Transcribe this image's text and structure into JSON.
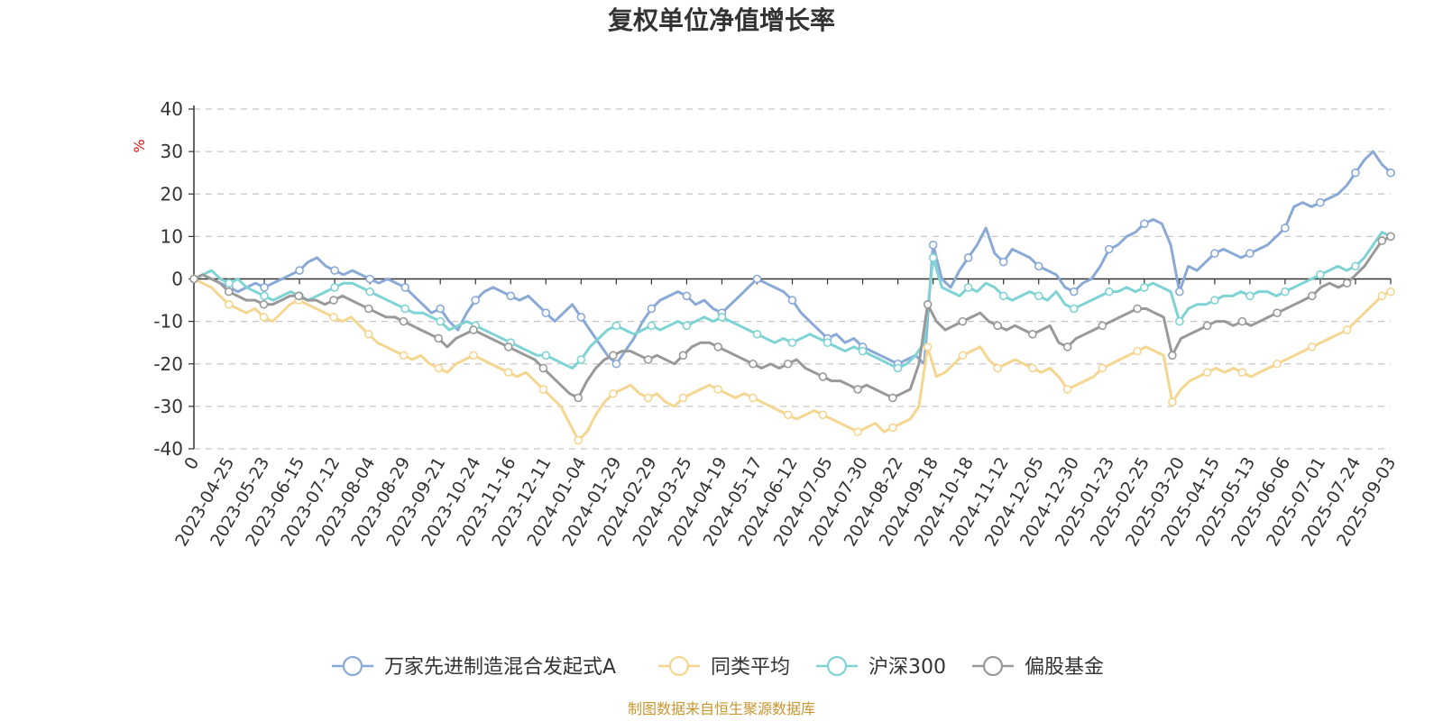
{
  "chart_data": {
    "type": "line",
    "title": "复权单位净值增长率",
    "y_unit": "%",
    "ylim": [
      -40,
      40
    ],
    "y_ticks": [
      40,
      30,
      20,
      10,
      0,
      -10,
      -20,
      -30,
      -40
    ],
    "grid": "horizontal-dashed",
    "legend_position": "bottom-center",
    "x_origin_label": "0",
    "x_tick_labels": [
      "2023-04-25",
      "2023-05-23",
      "2023-06-15",
      "2023-07-12",
      "2023-08-04",
      "2023-08-29",
      "2023-09-21",
      "2023-10-24",
      "2023-11-16",
      "2023-12-11",
      "2024-01-04",
      "2024-01-29",
      "2024-02-29",
      "2024-03-25",
      "2024-04-19",
      "2024-05-17",
      "2024-06-12",
      "2024-07-05",
      "2024-07-30",
      "2024-08-22",
      "2024-09-18",
      "2024-10-18",
      "2024-11-12",
      "2024-12-05",
      "2024-12-30",
      "2025-01-23",
      "2025-02-25",
      "2025-03-20",
      "2025-04-15",
      "2025-05-13",
      "2025-06-06",
      "2025-07-01",
      "2025-07-24",
      "2025-09-03"
    ],
    "series": [
      {
        "name": "万家先进制造混合发起式A",
        "color": "#8aa9d6",
        "values": [
          0,
          1,
          0,
          -1,
          -2,
          -3,
          -2,
          -1,
          -2,
          -1,
          0,
          1,
          2,
          4,
          5,
          3,
          2,
          1,
          2,
          1,
          0,
          -1,
          0,
          -1,
          -2,
          -4,
          -6,
          -8,
          -7,
          -10,
          -12,
          -8,
          -5,
          -3,
          -2,
          -3,
          -4,
          -5,
          -4,
          -6,
          -8,
          -10,
          -8,
          -6,
          -9,
          -12,
          -15,
          -18,
          -20,
          -17,
          -14,
          -10,
          -7,
          -5,
          -4,
          -3,
          -4,
          -6,
          -5,
          -7,
          -8,
          -6,
          -4,
          -2,
          0,
          -1,
          -2,
          -3,
          -5,
          -8,
          -10,
          -12,
          -14,
          -13,
          -15,
          -14,
          -16,
          -17,
          -18,
          -19,
          -20,
          -19,
          -18,
          -20,
          8,
          0,
          -2,
          2,
          5,
          8,
          12,
          6,
          4,
          7,
          6,
          5,
          3,
          2,
          1,
          -2,
          -3,
          -1,
          0,
          3,
          7,
          8,
          10,
          11,
          13,
          14,
          13,
          8,
          -3,
          3,
          2,
          4,
          6,
          7,
          6,
          5,
          6,
          7,
          8,
          10,
          12,
          17,
          18,
          17,
          18,
          19,
          20,
          22,
          25,
          28,
          30,
          27,
          25
        ]
      },
      {
        "name": "同类平均",
        "color": "#f5d691",
        "values": [
          0,
          -1,
          -2,
          -4,
          -6,
          -7,
          -8,
          -7,
          -9,
          -10,
          -8,
          -6,
          -5,
          -6,
          -7,
          -8,
          -9,
          -10,
          -9,
          -11,
          -13,
          -15,
          -16,
          -17,
          -18,
          -19,
          -18,
          -20,
          -21,
          -22,
          -20,
          -19,
          -18,
          -19,
          -20,
          -21,
          -22,
          -23,
          -22,
          -24,
          -26,
          -28,
          -30,
          -34,
          -38,
          -36,
          -32,
          -29,
          -27,
          -26,
          -25,
          -27,
          -28,
          -27,
          -29,
          -30,
          -28,
          -27,
          -26,
          -25,
          -26,
          -27,
          -28,
          -27,
          -28,
          -29,
          -30,
          -31,
          -32,
          -33,
          -32,
          -31,
          -32,
          -33,
          -34,
          -35,
          -36,
          -35,
          -34,
          -36,
          -35,
          -34,
          -33,
          -30,
          -16,
          -23,
          -22,
          -20,
          -18,
          -17,
          -16,
          -19,
          -21,
          -20,
          -19,
          -20,
          -21,
          -22,
          -21,
          -23,
          -26,
          -25,
          -24,
          -23,
          -21,
          -20,
          -19,
          -18,
          -17,
          -16,
          -17,
          -18,
          -29,
          -26,
          -24,
          -23,
          -22,
          -21,
          -22,
          -21,
          -22,
          -23,
          -22,
          -21,
          -20,
          -19,
          -18,
          -17,
          -16,
          -15,
          -14,
          -13,
          -12,
          -10,
          -8,
          -6,
          -4,
          -3
        ]
      },
      {
        "name": "沪深300",
        "color": "#7fd3d3",
        "values": [
          0,
          1,
          2,
          0,
          -1,
          0,
          -2,
          -3,
          -4,
          -5,
          -4,
          -3,
          -4,
          -5,
          -4,
          -3,
          -2,
          -1,
          -1,
          -2,
          -3,
          -4,
          -5,
          -6,
          -7,
          -8,
          -8,
          -9,
          -10,
          -12,
          -11,
          -10,
          -11,
          -12,
          -13,
          -14,
          -15,
          -16,
          -17,
          -18,
          -18,
          -19,
          -20,
          -21,
          -19,
          -16,
          -14,
          -12,
          -11,
          -12,
          -13,
          -12,
          -11,
          -12,
          -11,
          -10,
          -11,
          -10,
          -9,
          -10,
          -9,
          -10,
          -11,
          -12,
          -13,
          -14,
          -15,
          -14,
          -15,
          -14,
          -13,
          -14,
          -15,
          -16,
          -17,
          -16,
          -17,
          -18,
          -19,
          -20,
          -21,
          -20,
          -18,
          -15,
          5,
          -2,
          -3,
          -4,
          -2,
          -3,
          -1,
          -2,
          -4,
          -5,
          -4,
          -3,
          -4,
          -5,
          -3,
          -6,
          -7,
          -6,
          -5,
          -4,
          -3,
          -3,
          -2,
          -3,
          -2,
          -1,
          -2,
          -3,
          -10,
          -7,
          -6,
          -6,
          -5,
          -4,
          -4,
          -3,
          -4,
          -3,
          -3,
          -4,
          -3,
          -2,
          -1,
          0,
          1,
          2,
          3,
          2,
          3,
          5,
          8,
          11,
          10
        ]
      },
      {
        "name": "偏股基金",
        "color": "#999999",
        "values": [
          0,
          1,
          0,
          -1,
          -3,
          -4,
          -5,
          -5,
          -6,
          -6,
          -5,
          -4,
          -4,
          -5,
          -5,
          -6,
          -5,
          -4,
          -5,
          -6,
          -7,
          -8,
          -9,
          -9,
          -10,
          -11,
          -12,
          -13,
          -14,
          -16,
          -14,
          -13,
          -12,
          -13,
          -14,
          -15,
          -16,
          -17,
          -18,
          -19,
          -21,
          -23,
          -25,
          -27,
          -28,
          -24,
          -21,
          -19,
          -18,
          -17,
          -17,
          -18,
          -19,
          -18,
          -19,
          -20,
          -18,
          -16,
          -15,
          -15,
          -16,
          -17,
          -18,
          -19,
          -20,
          -21,
          -20,
          -21,
          -20,
          -19,
          -21,
          -22,
          -23,
          -24,
          -24,
          -25,
          -26,
          -25,
          -26,
          -27,
          -28,
          -27,
          -26,
          -20,
          -6,
          -10,
          -12,
          -11,
          -10,
          -9,
          -8,
          -10,
          -11,
          -12,
          -11,
          -12,
          -13,
          -12,
          -11,
          -15,
          -16,
          -14,
          -13,
          -12,
          -11,
          -10,
          -9,
          -8,
          -7,
          -7,
          -8,
          -9,
          -18,
          -14,
          -13,
          -12,
          -11,
          -10,
          -10,
          -11,
          -10,
          -11,
          -10,
          -9,
          -8,
          -7,
          -6,
          -5,
          -4,
          -2,
          -1,
          -2,
          -1,
          1,
          3,
          6,
          9,
          10
        ]
      }
    ]
  },
  "footer": {
    "source": "制图数据来自恒生聚源数据库"
  }
}
